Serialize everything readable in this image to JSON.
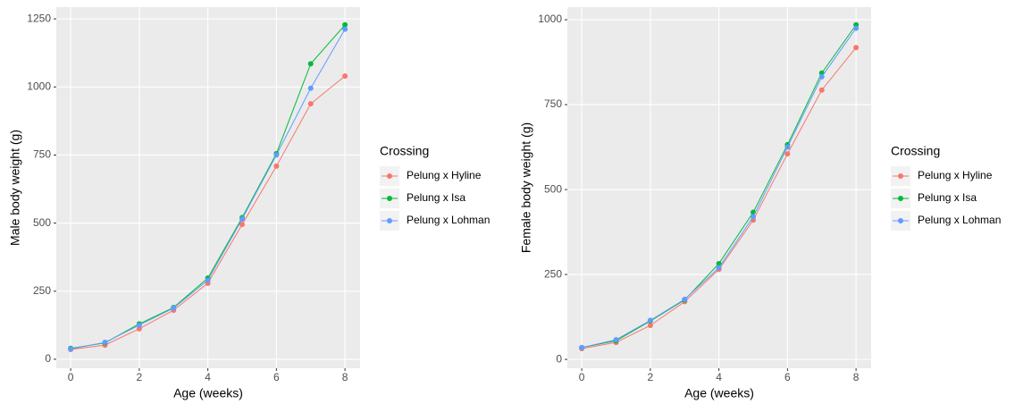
{
  "chart_data": [
    {
      "type": "line",
      "x_label": "Age (weeks)",
      "y_label": "Male body weight (g)",
      "legend_title": "Crossing",
      "x": [
        0,
        1,
        2,
        3,
        4,
        5,
        6,
        7,
        8
      ],
      "series": [
        {
          "name": "Pelung x Hyline",
          "color": "#F8766D",
          "values": [
            36,
            52,
            112,
            180,
            279,
            495,
            709,
            938,
            1040
          ]
        },
        {
          "name": "Pelung x Isa",
          "color": "#00BA38",
          "values": [
            40,
            60,
            130,
            190,
            298,
            520,
            755,
            1085,
            1228
          ]
        },
        {
          "name": "Pelung x Lohman",
          "color": "#619CFF",
          "values": [
            38,
            62,
            125,
            188,
            290,
            515,
            750,
            995,
            1212
          ]
        }
      ],
      "xlim": [
        -0.42,
        8.44
      ],
      "xticks": [
        0,
        2,
        4,
        6,
        8
      ],
      "ylim": [
        -33,
        1293
      ],
      "yticks": [
        0,
        250,
        500,
        750,
        1000,
        1250
      ],
      "grid": true
    },
    {
      "type": "line",
      "x_label": "Age (weeks)",
      "y_label": "Female body weight (g)",
      "legend_title": "Crossing",
      "x": [
        0,
        1,
        2,
        3,
        4,
        5,
        6,
        7,
        8
      ],
      "series": [
        {
          "name": "Pelung x Hyline",
          "color": "#F8766D",
          "values": [
            32,
            50,
            100,
            170,
            265,
            410,
            605,
            793,
            918
          ]
        },
        {
          "name": "Pelung x Isa",
          "color": "#00BA38",
          "values": [
            35,
            55,
            113,
            175,
            282,
            433,
            632,
            843,
            985
          ]
        },
        {
          "name": "Pelung x Lohman",
          "color": "#619CFF",
          "values": [
            35,
            58,
            115,
            177,
            270,
            420,
            625,
            832,
            975
          ]
        }
      ],
      "xlim": [
        -0.42,
        8.44
      ],
      "xticks": [
        0,
        2,
        4,
        6,
        8
      ],
      "ylim": [
        -26,
        1037
      ],
      "yticks": [
        0,
        250,
        500,
        750,
        1000
      ],
      "grid": true
    }
  ]
}
